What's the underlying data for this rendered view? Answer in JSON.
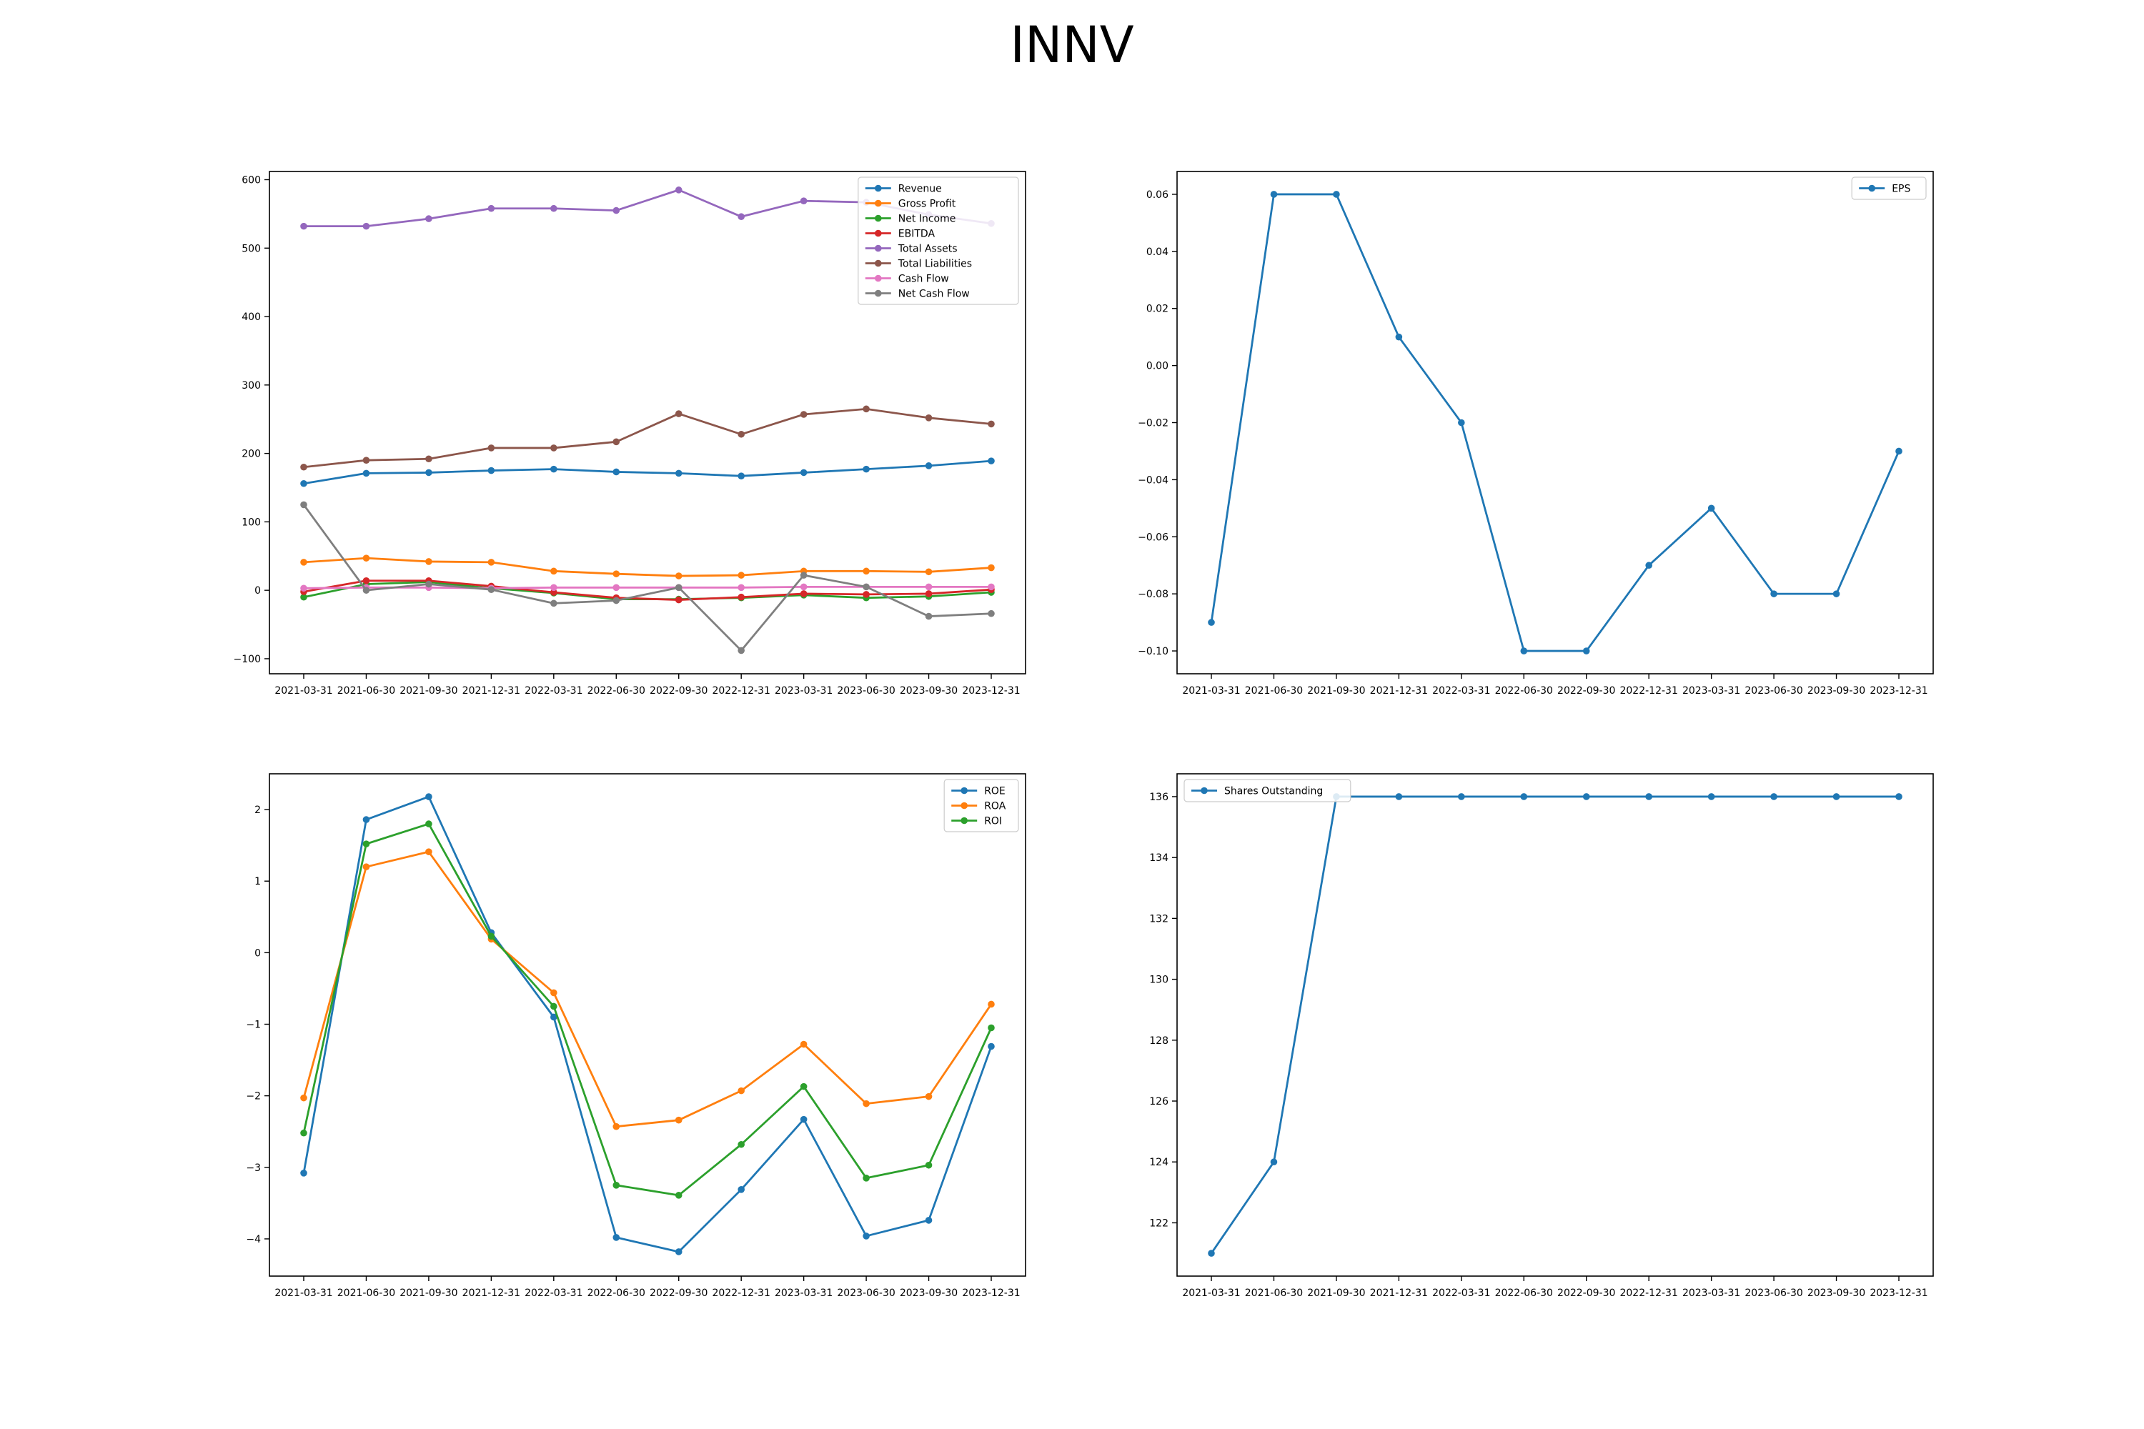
{
  "title": "INNV",
  "colors": {
    "c0": "#1f77b4",
    "c1": "#ff7f0e",
    "c2": "#2ca02c",
    "c3": "#d62728",
    "c4": "#9467bd",
    "c5": "#8c564b",
    "c6": "#e377c2",
    "c7": "#7f7f7f"
  },
  "chart_data": [
    {
      "type": "line",
      "categories": [
        "2021-03-31",
        "2021-06-30",
        "2021-09-30",
        "2021-12-31",
        "2022-03-31",
        "2022-06-30",
        "2022-09-30",
        "2022-12-31",
        "2023-03-31",
        "2023-06-30",
        "2023-09-30",
        "2023-12-31"
      ],
      "ylim": [
        -122,
        612
      ],
      "yticks": [
        -100,
        0,
        100,
        200,
        300,
        400,
        500,
        600
      ],
      "legend": "top-right",
      "series": [
        {
          "name": "Revenue",
          "color": "#1f77b4",
          "values": [
            156,
            171,
            172,
            175,
            177,
            173,
            171,
            167,
            172,
            177,
            182,
            189
          ]
        },
        {
          "name": "Gross Profit",
          "color": "#ff7f0e",
          "values": [
            41,
            47,
            42,
            41,
            28,
            24,
            21,
            22,
            28,
            28,
            27,
            33
          ]
        },
        {
          "name": "Net Income",
          "color": "#2ca02c",
          "values": [
            -10,
            9,
            12,
            3,
            -4,
            -13,
            -13,
            -11,
            -7,
            -11,
            -9,
            -3
          ]
        },
        {
          "name": "EBITDA",
          "color": "#d62728",
          "values": [
            -2,
            14,
            14,
            6,
            -3,
            -11,
            -14,
            -10,
            -5,
            -6,
            -5,
            1
          ]
        },
        {
          "name": "Total Assets",
          "color": "#9467bd",
          "values": [
            532,
            532,
            543,
            558,
            558,
            555,
            585,
            546,
            569,
            567,
            549,
            536
          ]
        },
        {
          "name": "Total Liabilities",
          "color": "#8c564b",
          "values": [
            180,
            190,
            192,
            208,
            208,
            217,
            258,
            228,
            257,
            265,
            252,
            243
          ]
        },
        {
          "name": "Cash Flow",
          "color": "#e377c2",
          "values": [
            3,
            4,
            4,
            3,
            4,
            4,
            4,
            4,
            5,
            5,
            5,
            5
          ]
        },
        {
          "name": "Net Cash Flow",
          "color": "#7f7f7f",
          "values": [
            125,
            0,
            9,
            1,
            -19,
            -15,
            4,
            -88,
            22,
            5,
            -38,
            -34
          ]
        }
      ]
    },
    {
      "type": "line",
      "categories": [
        "2021-03-31",
        "2021-06-30",
        "2021-09-30",
        "2021-12-31",
        "2022-03-31",
        "2022-06-30",
        "2022-09-30",
        "2022-12-31",
        "2023-03-31",
        "2023-06-30",
        "2023-09-30",
        "2023-12-31"
      ],
      "ylim": [
        -0.108,
        0.068
      ],
      "yticks": [
        -0.1,
        -0.08,
        -0.06,
        -0.04,
        -0.02,
        0.0,
        0.02,
        0.04,
        0.06
      ],
      "ytick_decimals": 2,
      "legend": "top-right",
      "series": [
        {
          "name": "EPS",
          "color": "#1f77b4",
          "values": [
            -0.09,
            0.06,
            0.06,
            0.01,
            -0.02,
            -0.1,
            -0.1,
            -0.07,
            -0.05,
            -0.08,
            -0.08,
            -0.03
          ]
        }
      ]
    },
    {
      "type": "line",
      "categories": [
        "2021-03-31",
        "2021-06-30",
        "2021-09-30",
        "2021-12-31",
        "2022-03-31",
        "2022-06-30",
        "2022-09-30",
        "2022-12-31",
        "2023-03-31",
        "2023-06-30",
        "2023-09-30",
        "2023-12-31"
      ],
      "ylim": [
        -4.52,
        2.5
      ],
      "yticks": [
        -4,
        -3,
        -2,
        -1,
        0,
        1,
        2
      ],
      "legend": "top-right",
      "series": [
        {
          "name": "ROE",
          "color": "#1f77b4",
          "values": [
            -3.08,
            1.86,
            2.18,
            0.28,
            -0.9,
            -3.98,
            -4.18,
            -3.31,
            -2.33,
            -3.96,
            -3.74,
            -1.31
          ]
        },
        {
          "name": "ROA",
          "color": "#ff7f0e",
          "values": [
            -2.03,
            1.2,
            1.41,
            0.19,
            -0.56,
            -2.43,
            -2.34,
            -1.93,
            -1.28,
            -2.11,
            -2.01,
            -0.72
          ]
        },
        {
          "name": "ROI",
          "color": "#2ca02c",
          "values": [
            -2.52,
            1.52,
            1.8,
            0.23,
            -0.75,
            -3.25,
            -3.39,
            -2.68,
            -1.87,
            -3.15,
            -2.97,
            -1.05
          ]
        }
      ]
    },
    {
      "type": "line",
      "categories": [
        "2021-03-31",
        "2021-06-30",
        "2021-09-30",
        "2021-12-31",
        "2022-03-31",
        "2022-06-30",
        "2022-09-30",
        "2022-12-31",
        "2023-03-31",
        "2023-06-30",
        "2023-09-30",
        "2023-12-31"
      ],
      "ylim": [
        120.25,
        136.75
      ],
      "yticks": [
        122,
        124,
        126,
        128,
        130,
        132,
        134,
        136
      ],
      "legend": "top-left",
      "series": [
        {
          "name": "Shares Outstanding",
          "color": "#1f77b4",
          "values": [
            121,
            124,
            136,
            136,
            136,
            136,
            136,
            136,
            136,
            136,
            136,
            136
          ]
        }
      ]
    }
  ]
}
